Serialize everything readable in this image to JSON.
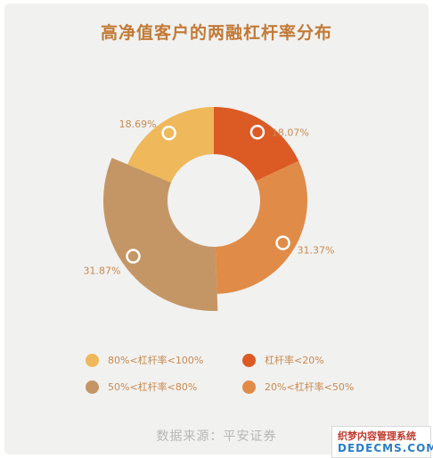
{
  "title": "高净值客户的两融杠杆率分布",
  "source": "数据来源：平安证券",
  "watermark": {
    "line1": "织梦内容管理系统",
    "line2": "DEDECMS.COM"
  },
  "chart_data": {
    "type": "pie",
    "variant": "donut",
    "slices": [
      {
        "label": "杠杆率<20%",
        "value": 18.07,
        "value_label": "18.07%",
        "color": "#dc5a24"
      },
      {
        "label": "20%<杠杆率<50%",
        "value": 31.37,
        "value_label": "31.37%",
        "color": "#e08b47"
      },
      {
        "label": "50%<杠杆率<80%",
        "value": 31.87,
        "value_label": "31.87%",
        "color": "#c49666"
      },
      {
        "label": "80%<杠杆率<100%",
        "value": 18.69,
        "value_label": "18.69%",
        "color": "#efb85a"
      }
    ],
    "legend_order": [
      "80%<杠杆率<100%",
      "杠杆率<20%",
      "50%<杠杆率<80%",
      "20%<杠杆率<50%"
    ],
    "legend_position": "bottom"
  }
}
